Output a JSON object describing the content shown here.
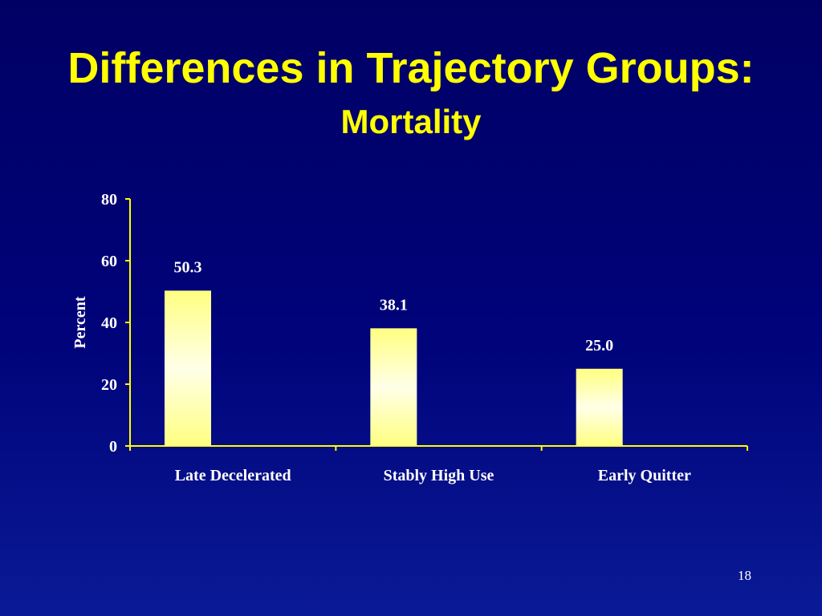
{
  "title": "Differences in Trajectory Groups:",
  "subtitle": "Mortality",
  "page_number": "18",
  "chart_data": {
    "type": "bar",
    "title": "Differences in Trajectory Groups: Mortality",
    "categories": [
      "Late Decelerated",
      "Stably High Use",
      "Early Quitter"
    ],
    "values": [
      50.3,
      38.1,
      25.0
    ],
    "labels": [
      "50.3",
      "38.1",
      "25.0"
    ],
    "xlabel": "",
    "ylabel": "Percent",
    "ylim": [
      0,
      80
    ],
    "yticks": [
      "0",
      "20",
      "40",
      "60",
      "80"
    ],
    "grid": false,
    "colors": {
      "bar_top": "#ffff80",
      "bar_mid": "#ffffe8",
      "axis": "#ffff00"
    }
  }
}
